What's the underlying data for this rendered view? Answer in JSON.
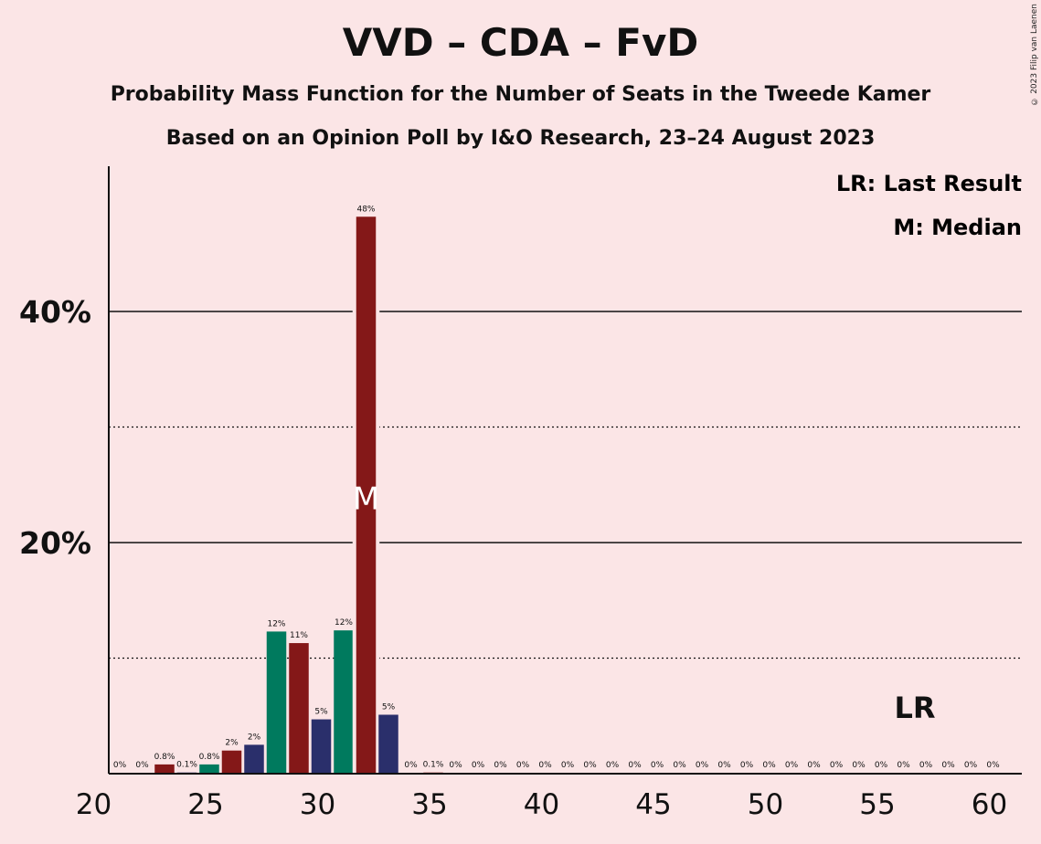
{
  "chart_data": {
    "type": "bar",
    "title": "VVD – CDA – FvD",
    "subtitle": "Probability Mass Function for the Number of Seats in the Tweede Kamer",
    "subtitle2": "Based on an Opinion Poll by I&O Research, 23–24 August 2023",
    "copyright": "© 2023 Filip van Laenen",
    "legend": [
      "LR: Last Result",
      "M: Median"
    ],
    "legend_placement": "top-right",
    "xlim": [
      20,
      60
    ],
    "ylim": [
      0,
      52
    ],
    "x_ticks": [
      20,
      25,
      30,
      35,
      40,
      45,
      50,
      55,
      60
    ],
    "y_ticks_labeled": [
      {
        "value": 20,
        "label": "20%"
      },
      {
        "value": 40,
        "label": "40%"
      }
    ],
    "y_gridlines_solid": [
      20,
      40
    ],
    "y_gridlines_dotted": [
      10,
      30
    ],
    "median_seat": 32,
    "median_marker": "M",
    "last_result_marker": "LR",
    "last_result_seat": 57,
    "colors": {
      "VVD": "#2a2f6b",
      "CDA": "#007a5e",
      "FvD": "#841818",
      "background": "#fbe5e6"
    },
    "x": [
      21,
      22,
      23,
      24,
      25,
      26,
      27,
      28,
      29,
      30,
      31,
      32,
      33,
      34,
      35,
      36,
      37,
      38,
      39,
      40,
      41,
      42,
      43,
      44,
      45,
      46,
      47,
      48,
      49,
      50,
      51,
      52,
      53,
      54,
      55,
      56,
      57,
      58,
      59,
      60
    ],
    "values": [
      0,
      0,
      0.8,
      0.1,
      0.8,
      2,
      2.5,
      12.3,
      11.3,
      4.7,
      12.4,
      48.2,
      5.1,
      0,
      0.1,
      0,
      0,
      0,
      0,
      0,
      0,
      0,
      0,
      0,
      0,
      0,
      0,
      0,
      0,
      0,
      0,
      0,
      0,
      0,
      0,
      0,
      0,
      0,
      0,
      0
    ],
    "data_labels": [
      "0%",
      "0%",
      "0.8%",
      "0.1%",
      "0.8%",
      "2%",
      "2%",
      "12%",
      "11%",
      "5%",
      "12%",
      "48%",
      "5%",
      "0%",
      "0.1%",
      "0%",
      "0%",
      "0%",
      "0%",
      "0%",
      "0%",
      "0%",
      "0%",
      "0%",
      "0%",
      "0%",
      "0%",
      "0%",
      "0%",
      "0%",
      "0%",
      "0%",
      "0%",
      "0%",
      "0%",
      "0%",
      "0%",
      "0%",
      "0%",
      "0%"
    ],
    "bar_party": [
      "FvD",
      "VVD",
      "FvD",
      "VVD",
      "CDA",
      "FvD",
      "VVD",
      "CDA",
      "FvD",
      "VVD",
      "CDA",
      "FvD",
      "VVD",
      "CDA",
      "FvD",
      "VVD",
      "CDA",
      "FvD",
      "VVD",
      "CDA",
      "FvD",
      "VVD",
      "CDA",
      "FvD",
      "VVD",
      "CDA",
      "FvD",
      "VVD",
      "CDA",
      "FvD",
      "VVD",
      "CDA",
      "FvD",
      "VVD",
      "CDA",
      "FvD",
      "VVD",
      "CDA",
      "FvD",
      "VVD"
    ]
  }
}
